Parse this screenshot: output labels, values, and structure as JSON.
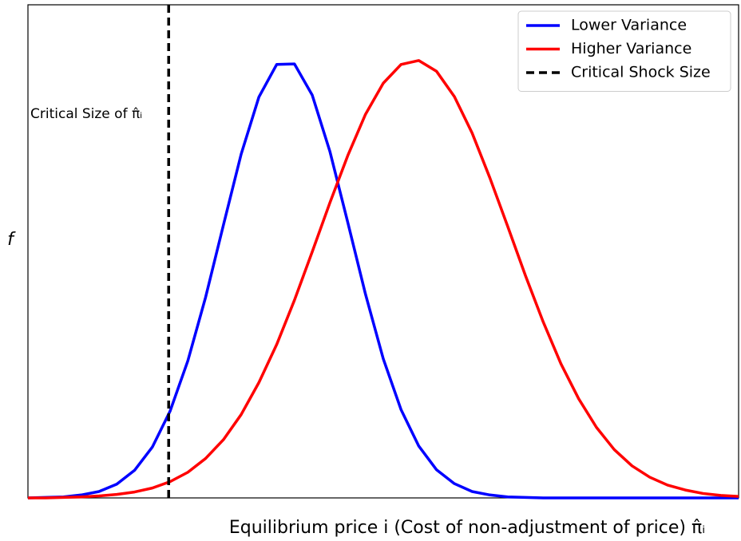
{
  "chart_data": {
    "type": "line",
    "x": [
      0,
      0.25,
      0.5,
      0.75,
      1,
      1.25,
      1.5,
      1.75,
      2,
      2.25,
      2.5,
      2.75,
      3,
      3.25,
      3.5,
      3.75,
      4,
      4.25,
      4.5,
      4.75,
      5,
      5.25,
      5.5,
      5.75,
      6,
      6.25,
      6.5,
      6.75,
      7,
      7.25,
      7.5,
      7.75,
      8,
      8.25,
      8.5,
      8.75,
      9,
      9.25,
      9.5,
      9.75,
      10
    ],
    "series": [
      {
        "name": "Lower Variance",
        "color": "#0000ff",
        "values": [
          0,
          0.001,
          0.002,
          0.006,
          0.013,
          0.028,
          0.056,
          0.103,
          0.176,
          0.278,
          0.407,
          0.553,
          0.697,
          0.813,
          0.879,
          0.88,
          0.817,
          0.702,
          0.559,
          0.413,
          0.282,
          0.179,
          0.105,
          0.057,
          0.029,
          0.013,
          0.006,
          0.002,
          0.001,
          0,
          0,
          0,
          0,
          0,
          0,
          0,
          0,
          0,
          0,
          0,
          0
        ]
      },
      {
        "name": "Higher Variance",
        "color": "#ff0000",
        "values": [
          0,
          0,
          0.001,
          0.002,
          0.004,
          0.007,
          0.012,
          0.02,
          0.033,
          0.052,
          0.08,
          0.118,
          0.169,
          0.234,
          0.311,
          0.401,
          0.499,
          0.599,
          0.694,
          0.778,
          0.841,
          0.879,
          0.887,
          0.865,
          0.814,
          0.74,
          0.649,
          0.551,
          0.451,
          0.357,
          0.272,
          0.201,
          0.143,
          0.098,
          0.065,
          0.042,
          0.026,
          0.016,
          0.009,
          0.005,
          0.003
        ]
      }
    ],
    "vlines": [
      {
        "name": "Critical Shock Size",
        "x": 1.98,
        "color": "#000000",
        "dashed": true
      }
    ],
    "annotation": "Critical Size of π̂ᵢ",
    "xlabel": "Equilibrium price i (Cost of non-adjustment of price) π̂ᵢ",
    "ylabel": "f",
    "xlim": [
      0,
      10
    ],
    "ylim": [
      0,
      1
    ],
    "legend": "upper right"
  }
}
